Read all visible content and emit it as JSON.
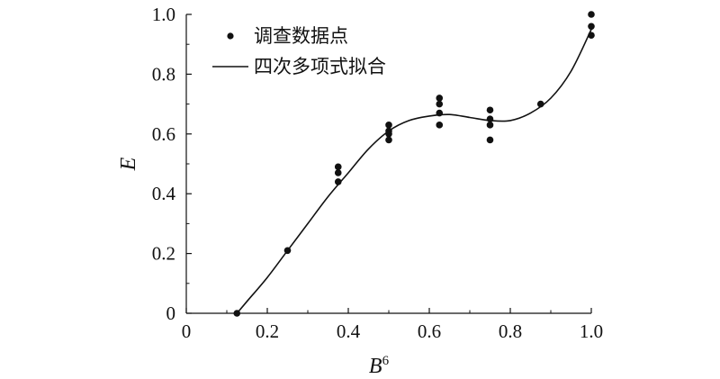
{
  "chart_data": {
    "type": "scatter",
    "title": "",
    "xlabel": "B",
    "xlabel_superscript": "6",
    "ylabel": "E",
    "xlim": [
      0,
      1.0
    ],
    "ylim": [
      0,
      1.0
    ],
    "x_ticks": [
      "0",
      "0.2",
      "0.4",
      "0.6",
      "0.8",
      "1.0"
    ],
    "y_ticks": [
      "0",
      "0.2",
      "0.4",
      "0.6",
      "0.8",
      "1.0"
    ],
    "x_tick_values": [
      0,
      0.2,
      0.4,
      0.6,
      0.8,
      1.0
    ],
    "y_tick_values": [
      0,
      0.2,
      0.4,
      0.6,
      0.8,
      1.0
    ],
    "grid": false,
    "legend_position": "top-left",
    "series": [
      {
        "name": "调查数据点",
        "kind": "scatter",
        "color": "#111111",
        "points": [
          [
            0.125,
            0.0
          ],
          [
            0.25,
            0.21
          ],
          [
            0.375,
            0.49
          ],
          [
            0.375,
            0.47
          ],
          [
            0.375,
            0.44
          ],
          [
            0.5,
            0.63
          ],
          [
            0.5,
            0.61
          ],
          [
            0.5,
            0.6
          ],
          [
            0.5,
            0.58
          ],
          [
            0.625,
            0.72
          ],
          [
            0.625,
            0.7
          ],
          [
            0.625,
            0.67
          ],
          [
            0.625,
            0.63
          ],
          [
            0.75,
            0.68
          ],
          [
            0.75,
            0.65
          ],
          [
            0.75,
            0.63
          ],
          [
            0.75,
            0.58
          ],
          [
            0.875,
            0.7
          ],
          [
            1.0,
            1.0
          ],
          [
            1.0,
            0.96
          ],
          [
            1.0,
            0.93
          ]
        ]
      },
      {
        "name": "四次多项式拟合",
        "kind": "line",
        "color": "#111111",
        "curve": [
          [
            0.125,
            0.0
          ],
          [
            0.15,
            0.04
          ],
          [
            0.2,
            0.12
          ],
          [
            0.25,
            0.21
          ],
          [
            0.3,
            0.3
          ],
          [
            0.35,
            0.39
          ],
          [
            0.4,
            0.47
          ],
          [
            0.45,
            0.55
          ],
          [
            0.5,
            0.61
          ],
          [
            0.55,
            0.645
          ],
          [
            0.6,
            0.66
          ],
          [
            0.65,
            0.665
          ],
          [
            0.7,
            0.655
          ],
          [
            0.75,
            0.645
          ],
          [
            0.8,
            0.645
          ],
          [
            0.85,
            0.67
          ],
          [
            0.9,
            0.72
          ],
          [
            0.95,
            0.81
          ],
          [
            1.0,
            0.95
          ]
        ]
      }
    ]
  }
}
